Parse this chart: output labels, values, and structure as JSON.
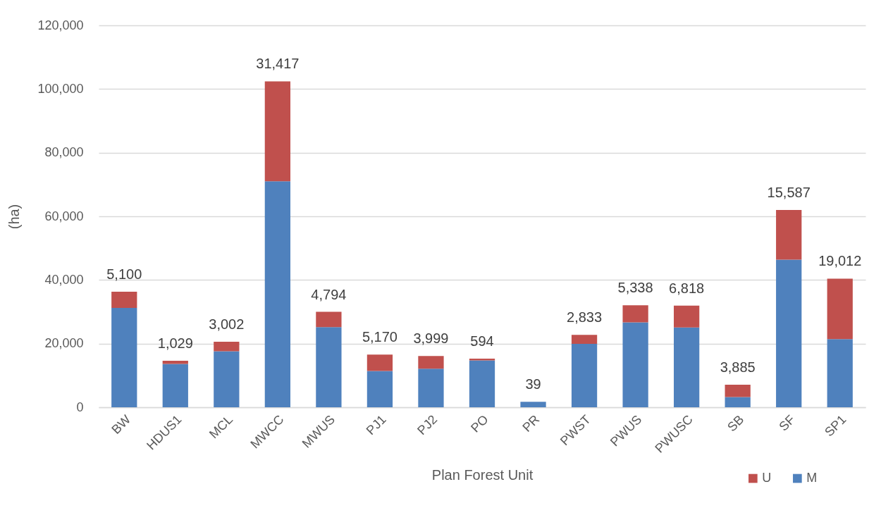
{
  "chart_data": {
    "type": "bar",
    "stacked": true,
    "xlabel": "Plan Forest Unit",
    "ylabel": "(ha)",
    "categories": [
      "BW",
      "HDUS1",
      "MCL",
      "MWCC",
      "MWUS",
      "PJ1",
      "PJ2",
      "PO",
      "PR",
      "PWST",
      "PWUS",
      "PWUSC",
      "SB",
      "SF",
      "SP1"
    ],
    "series": [
      {
        "name": "M",
        "color": "#4f81bd",
        "values": [
          31200,
          13600,
          17600,
          71000,
          25200,
          11400,
          12100,
          14700,
          1700,
          19900,
          26700,
          25100,
          3200,
          46400,
          21400
        ]
      },
      {
        "name": "U",
        "color": "#c0504d",
        "values": [
          5100,
          1029,
          3002,
          31417,
          4794,
          5170,
          3999,
          594,
          39,
          2833,
          5338,
          6818,
          3885,
          15587,
          19012
        ],
        "value_labels": [
          "5,100",
          "1,029",
          "3,002",
          "31,417",
          "4,794",
          "5,170",
          "3,999",
          "594",
          "39",
          "2,833",
          "5,338",
          "6,818",
          "3,885",
          "15,587",
          "19,012"
        ]
      }
    ],
    "ylim": [
      0,
      120000
    ],
    "yticks": [
      0,
      {
        "value": 20000,
        "label": "20,000"
      },
      {
        "value": 40000,
        "label": "40,000"
      },
      {
        "value": 60000,
        "label": "60,000"
      },
      {
        "value": 80000,
        "label": "80,000"
      },
      {
        "value": 100000,
        "label": "100,000"
      },
      {
        "value": 120000,
        "label": "120,000"
      }
    ],
    "grid": "y",
    "legend": "bottom right"
  }
}
